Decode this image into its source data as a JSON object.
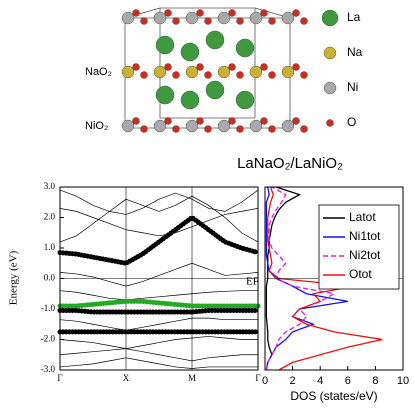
{
  "structure": {
    "title": "LaNaO₂/LaNiO₂",
    "layer_labels": [
      "NaO₂",
      "NiO₂"
    ],
    "legend": [
      {
        "name": "La",
        "color": "#3f9a3f"
      },
      {
        "name": "Na",
        "color": "#c9b233"
      },
      {
        "name": "Ni",
        "color": "#a9a9a9"
      },
      {
        "name": "O",
        "color": "#d42a1e"
      }
    ]
  },
  "chart_data": [
    {
      "type": "line",
      "ylabel": "Energy (eV)",
      "fermi_label": "EF",
      "hline": 0,
      "x": [
        0,
        0.25,
        0.5,
        0.75,
        1,
        1.25,
        1.5,
        1.75,
        2,
        2.25,
        2.5,
        2.75,
        3
      ],
      "xlim": [
        0,
        3
      ],
      "xticks": [
        {
          "value": 0,
          "label": "Γ"
        },
        {
          "value": 1,
          "label": "X"
        },
        {
          "value": 2,
          "label": "M"
        },
        {
          "value": 3,
          "label": "Γ"
        }
      ],
      "ylim": [
        -3,
        3
      ],
      "yticks": [
        {
          "value": -3,
          "label": "-3.0"
        },
        {
          "value": -2,
          "label": "-2.0"
        },
        {
          "value": -1,
          "label": "-1.0"
        },
        {
          "value": 0,
          "label": "0.0"
        },
        {
          "value": 1,
          "label": "1.0"
        },
        {
          "value": 2,
          "label": "2.0"
        },
        {
          "value": 3,
          "label": "3.0"
        }
      ],
      "series": [
        {
          "color": "#000000",
          "style": "thin",
          "values": [
            2.9,
            2.7,
            2.4,
            2.2,
            2.1,
            2.3,
            2.6,
            2.8,
            2.6,
            2.3,
            2.2,
            2.5,
            2.9
          ]
        },
        {
          "color": "#000000",
          "style": "thin",
          "values": [
            2.3,
            2.2,
            2.0,
            1.8,
            1.6,
            1.5,
            1.4,
            1.5,
            1.7,
            1.9,
            2.1,
            2.2,
            2.3
          ]
        },
        {
          "color": "#000000",
          "style": "thin",
          "values": [
            1.2,
            1.4,
            1.8,
            2.2,
            2.6,
            2.4,
            2.2,
            2.4,
            2.7,
            2.4,
            2.0,
            1.5,
            1.2
          ]
        },
        {
          "color": "#000000",
          "style": "fat",
          "values": [
            0.85,
            0.8,
            0.7,
            0.6,
            0.5,
            0.8,
            1.2,
            1.6,
            2.0,
            1.6,
            1.2,
            1.0,
            0.85
          ]
        },
        {
          "color": "#000000",
          "style": "thin",
          "values": [
            0.2,
            0.15,
            0.05,
            -0.1,
            -0.25,
            -0.1,
            0.1,
            0.3,
            0.5,
            0.3,
            0.1,
            0.15,
            0.2
          ]
        },
        {
          "color": "#000000",
          "style": "thin",
          "values": [
            -0.4,
            -0.45,
            -0.55,
            -0.65,
            -0.7,
            -0.65,
            -0.6,
            -0.55,
            -0.5,
            -0.45,
            -0.42,
            -0.4,
            -0.4
          ]
        },
        {
          "color": "#22aa22",
          "style": "fat",
          "values": [
            -0.9,
            -0.9,
            -0.85,
            -0.8,
            -0.75,
            -0.75,
            -0.8,
            -0.85,
            -0.9,
            -0.9,
            -0.9,
            -0.9,
            -0.9
          ]
        },
        {
          "color": "#000000",
          "style": "fat",
          "values": [
            -1.05,
            -1.05,
            -1.1,
            -1.1,
            -1.1,
            -1.1,
            -1.1,
            -1.1,
            -1.1,
            -1.05,
            -1.05,
            -1.05,
            -1.05
          ]
        },
        {
          "color": "#000000",
          "style": "thin",
          "values": [
            -1.35,
            -1.4,
            -1.5,
            -1.6,
            -1.7,
            -1.6,
            -1.5,
            -1.4,
            -1.3,
            -1.3,
            -1.35,
            -1.35,
            -1.35
          ]
        },
        {
          "color": "#000000",
          "style": "fat",
          "values": [
            -1.75,
            -1.75,
            -1.75,
            -1.75,
            -1.75,
            -1.75,
            -1.75,
            -1.75,
            -1.75,
            -1.75,
            -1.75,
            -1.75,
            -1.75
          ]
        },
        {
          "color": "#000000",
          "style": "thin",
          "values": [
            -2.0,
            -2.05,
            -2.1,
            -2.2,
            -2.3,
            -2.2,
            -2.1,
            -2.0,
            -1.95,
            -1.9,
            -1.95,
            -2.0,
            -2.0
          ]
        },
        {
          "color": "#000000",
          "style": "thin",
          "values": [
            -2.5,
            -2.45,
            -2.4,
            -2.35,
            -2.3,
            -2.4,
            -2.5,
            -2.6,
            -2.7,
            -2.6,
            -2.55,
            -2.5,
            -2.5
          ]
        },
        {
          "color": "#000000",
          "style": "thin",
          "values": [
            -2.9,
            -2.85,
            -2.8,
            -2.7,
            -2.6,
            -2.7,
            -2.8,
            -2.9,
            -2.95,
            -2.9,
            -2.9,
            -2.9,
            -2.9
          ]
        }
      ]
    },
    {
      "type": "line",
      "orientation": "horizontal",
      "xlabel": "DOS (states/eV)",
      "hline": 0,
      "legend": "upper right",
      "y": [
        -3,
        -2.75,
        -2.5,
        -2.25,
        -2,
        -1.75,
        -1.5,
        -1.25,
        -1,
        -0.75,
        -0.5,
        -0.25,
        0,
        0.25,
        0.5,
        0.75,
        1,
        1.25,
        1.5,
        1.75,
        2,
        2.25,
        2.5,
        2.75,
        3
      ],
      "ylim": [
        -3,
        3
      ],
      "xlim": [
        0,
        10
      ],
      "xticks": [
        0,
        2,
        4,
        6,
        8,
        10
      ],
      "series": [
        {
          "name": "Latot",
          "color": "#000000",
          "dash": false,
          "values": [
            0.1,
            0.2,
            0.5,
            0.3,
            0.2,
            0.2,
            0.15,
            0.1,
            0.1,
            0.1,
            0.1,
            0.1,
            0.2,
            0.2,
            0.2,
            0.2,
            0.3,
            0.3,
            0.4,
            0.5,
            0.7,
            1.0,
            1.5,
            2.5,
            0.8
          ]
        },
        {
          "name": "Ni1tot",
          "color": "#1010ee",
          "dash": false,
          "values": [
            0.1,
            0.2,
            0.5,
            0.8,
            1.5,
            2.0,
            3.5,
            2.0,
            2.5,
            6.0,
            3.0,
            2.0,
            0.8,
            0.3,
            0.2,
            0.1,
            0.1,
            0.1,
            0.1,
            0.1,
            0.1,
            0.1,
            0.1,
            0.3,
            0.2
          ]
        },
        {
          "name": "Ni2tot",
          "color": "#ee10ee",
          "dash": true,
          "values": [
            0.1,
            0.2,
            0.5,
            0.8,
            1.0,
            1.5,
            2.5,
            3.0,
            2.5,
            4.0,
            5.0,
            2.0,
            0.8,
            1.0,
            1.5,
            1.0,
            0.5,
            0.3,
            0.3,
            0.3,
            0.5,
            0.8,
            1.2,
            1.5,
            0.5
          ]
        },
        {
          "name": "Otot",
          "color": "#ee1010",
          "dash": false,
          "values": [
            1.0,
            2.0,
            4.0,
            6.0,
            8.5,
            5.0,
            3.0,
            2.0,
            2.5,
            4.0,
            3.5,
            6.5,
            1.0,
            0.3,
            0.5,
            0.4,
            0.3,
            0.2,
            0.2,
            0.2,
            0.2,
            0.3,
            0.4,
            0.6,
            0.4
          ]
        }
      ]
    }
  ]
}
